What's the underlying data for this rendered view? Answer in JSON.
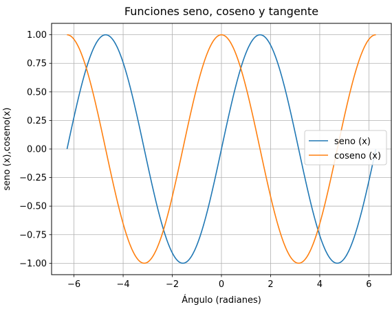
{
  "chart_data": {
    "type": "line",
    "title": "Funciones seno, coseno y tangente",
    "xlabel": "Ángulo (radianes)",
    "ylabel": "seno (x),coseno(x)",
    "xlim": [
      -6.912,
      6.912
    ],
    "ylim": [
      -1.1,
      1.1
    ],
    "x_ticks": [
      -6,
      -4,
      -2,
      0,
      2,
      4,
      6
    ],
    "x_tick_labels": [
      "−6",
      "−4",
      "−2",
      "0",
      "2",
      "4",
      "6"
    ],
    "y_ticks": [
      -1.0,
      -0.75,
      -0.5,
      -0.25,
      0.0,
      0.25,
      0.5,
      0.75,
      1.0
    ],
    "y_tick_labels": [
      "−1.00",
      "−0.75",
      "−0.50",
      "−0.25",
      "0.00",
      "0.25",
      "0.50",
      "0.75",
      "1.00"
    ],
    "grid": true,
    "legend_position": "center-right",
    "x_range": [
      -6.2832,
      6.2832
    ],
    "series": [
      {
        "name": "seno (x)",
        "color": "#1f77b4",
        "x": [
          -6.2832,
          -5.7596,
          -5.236,
          -4.7124,
          -4.1888,
          -3.6652,
          -3.1416,
          -2.618,
          -2.0944,
          -1.5708,
          -1.0472,
          -0.5236,
          0,
          0.5236,
          1.0472,
          1.5708,
          2.0944,
          2.618,
          3.1416,
          3.6652,
          4.1888,
          4.7124,
          5.236,
          5.7596,
          6.2832
        ],
        "values": [
          0,
          0.5,
          0.866,
          1,
          0.866,
          0.5,
          0,
          -0.5,
          -0.866,
          -1,
          -0.866,
          -0.5,
          0,
          0.5,
          0.866,
          1,
          0.866,
          0.5,
          0,
          -0.5,
          -0.866,
          -1,
          -0.866,
          -0.5,
          0
        ]
      },
      {
        "name": "coseno (x)",
        "color": "#ff7f0e",
        "x": [
          -6.2832,
          -5.7596,
          -5.236,
          -4.7124,
          -4.1888,
          -3.6652,
          -3.1416,
          -2.618,
          -2.0944,
          -1.5708,
          -1.0472,
          -0.5236,
          0,
          0.5236,
          1.0472,
          1.5708,
          2.0944,
          2.618,
          3.1416,
          3.6652,
          4.1888,
          4.7124,
          5.236,
          5.7596,
          6.2832
        ],
        "values": [
          1,
          0.866,
          0.5,
          0,
          -0.5,
          -0.866,
          -1,
          -0.866,
          -0.5,
          0,
          0.5,
          0.866,
          1,
          0.866,
          0.5,
          0,
          -0.5,
          -0.866,
          -1,
          -0.866,
          -0.5,
          0,
          0.5,
          0.866,
          1
        ]
      }
    ]
  }
}
